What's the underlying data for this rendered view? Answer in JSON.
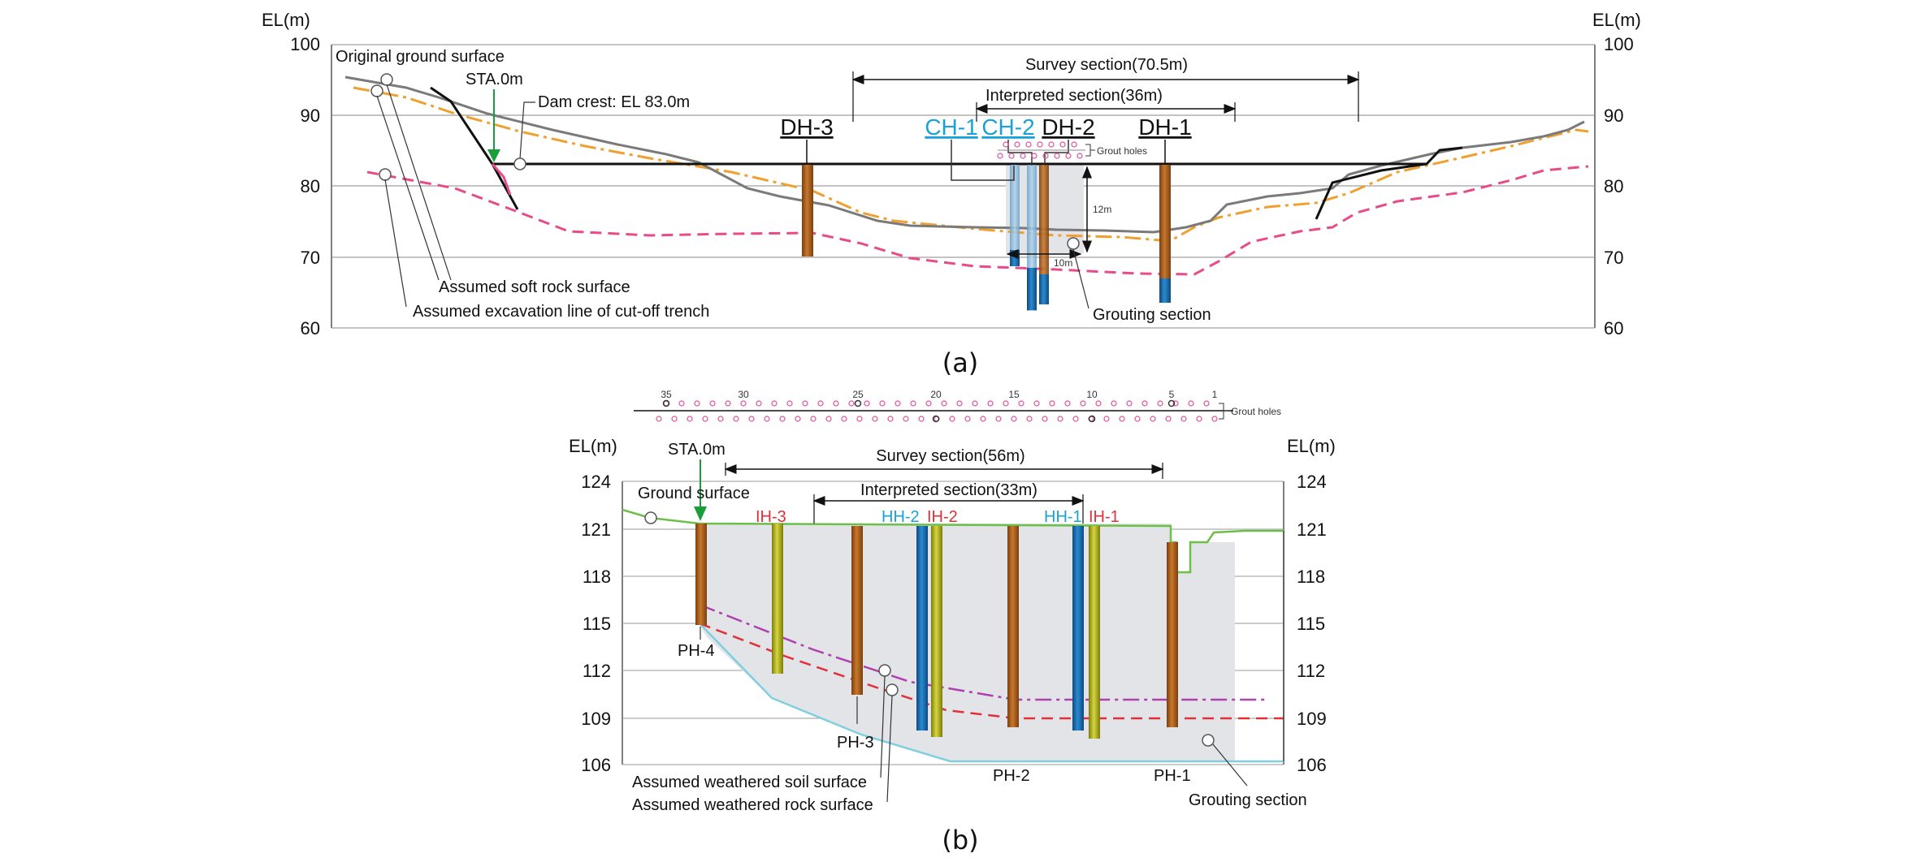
{
  "panel_a": {
    "caption": "(a)",
    "y_label_left": "EL(m)",
    "y_label_right": "EL(m)",
    "y_ticks": [
      "100",
      "90",
      "80",
      "70",
      "60"
    ],
    "original_ground": "Original ground surface",
    "sta": "STA.0m",
    "dam_crest": "Dam crest: EL 83.0m",
    "survey_section": "Survey section(70.5m)",
    "interpreted_section": "Interpreted section(36m)",
    "grout_holes": "Grout holes",
    "dim_vertical": "12m",
    "dim_horizontal": "10m",
    "soft_rock": "Assumed soft rock surface",
    "excavation_line": "Assumed excavation line of cut-off trench",
    "grouting_section": "Grouting section",
    "holes": [
      "DH-3",
      "CH-1",
      "CH-2",
      "DH-2",
      "DH-1"
    ]
  },
  "panel_b": {
    "caption": "(b)",
    "y_label_left": "EL(m)",
    "y_label_right": "EL(m)",
    "y_ticks": [
      "124",
      "121",
      "118",
      "115",
      "112",
      "109",
      "106"
    ],
    "grout_numbers": [
      "35",
      "30",
      "25",
      "20",
      "15",
      "10",
      "5",
      "1"
    ],
    "grout_holes": "Grout holes",
    "sta": "STA.0m",
    "survey_section": "Survey section(56m)",
    "interpreted_section": "Interpreted section(33m)",
    "ground_surface": "Ground surface",
    "holes_top": [
      "IH-3",
      "HH-2",
      "IH-2",
      "HH-1",
      "IH-1"
    ],
    "holes_bottom": [
      "PH-4",
      "PH-3",
      "PH-2",
      "PH-1"
    ],
    "weathered_soil": "Assumed weathered soil surface",
    "weathered_rock": "Assumed weathered rock surface",
    "grouting_section": "Grouting section"
  },
  "colors": {
    "green": "#1a9e3a",
    "blue_label": "#3b5cae",
    "cyan_label": "#19a2d8",
    "red_label": "#e0303a",
    "orange_dash": "#f0a030",
    "pink_dash": "#e84a8a",
    "ground_grey": "#707070",
    "ground_green": "#6cc04a",
    "grout_fill": "#e2e4e7",
    "borehole_brown": "#b5651d",
    "borehole_blue": "#1b73b8",
    "borehole_yellow": "#b8b81a",
    "weathered_line": "#80cfe0",
    "purple_dash": "#b040b0"
  }
}
